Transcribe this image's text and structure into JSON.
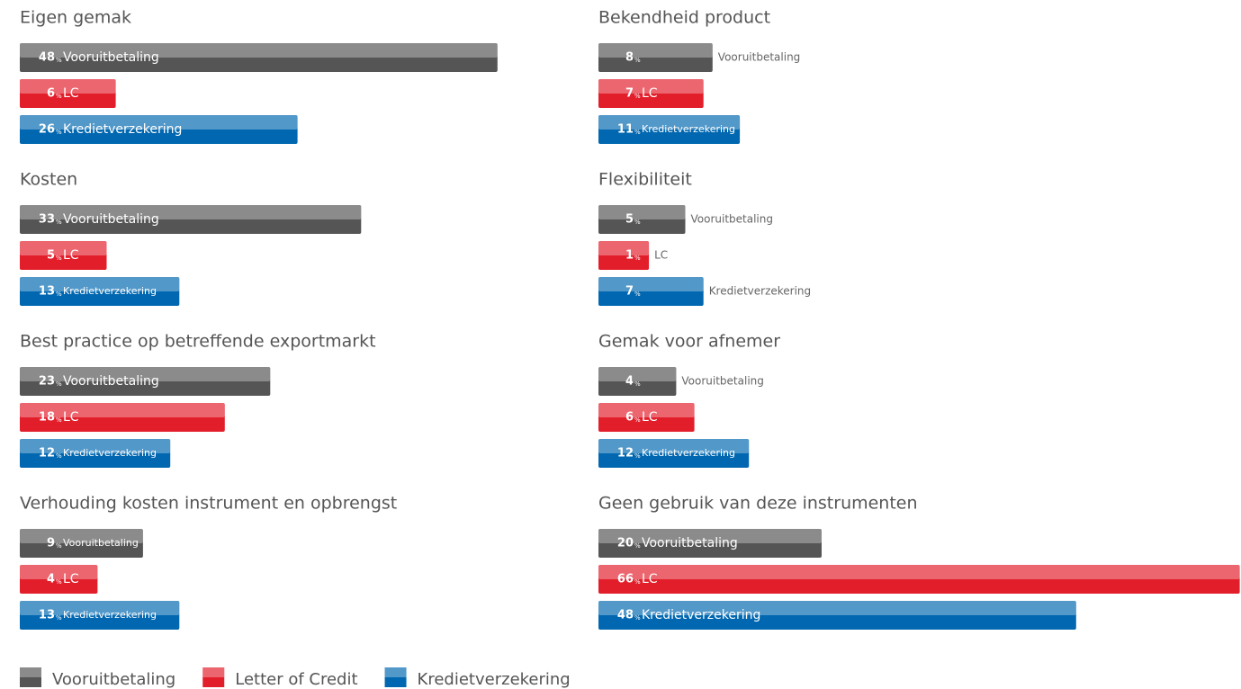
{
  "unit": "%",
  "legend": [
    {
      "name": "Vooruitbetaling",
      "color": "#555555"
    },
    {
      "name": "Letter of Credit",
      "color": "#e31e2b"
    },
    {
      "name": "Kredietverzekering",
      "color": "#0067b0"
    }
  ],
  "chart_data": [
    {
      "type": "bar",
      "title": "Eigen gemak",
      "categories": [
        "Vooruitbetaling",
        "LC",
        "Kredietverzekering"
      ],
      "values": [
        48,
        6,
        26
      ]
    },
    {
      "type": "bar",
      "title": "Kosten",
      "categories": [
        "Vooruitbetaling",
        "LC",
        "Kredietverzekering"
      ],
      "values": [
        33,
        5,
        13
      ]
    },
    {
      "type": "bar",
      "title": "Best practice op betreffende exportmarkt",
      "categories": [
        "Vooruitbetaling",
        "LC",
        "Kredietverzekering"
      ],
      "values": [
        23,
        18,
        12
      ]
    },
    {
      "type": "bar",
      "title": "Verhouding kosten instrument en opbrengst",
      "categories": [
        "Vooruitbetaling",
        "LC",
        "Kredietverzekering"
      ],
      "values": [
        9,
        4,
        13
      ]
    },
    {
      "type": "bar",
      "title": "Bekendheid product",
      "categories": [
        "Vooruitbetaling",
        "LC",
        "Kredietverzekering"
      ],
      "values": [
        8,
        7,
        11
      ]
    },
    {
      "type": "bar",
      "title": "Flexibiliteit",
      "categories": [
        "Vooruitbetaling",
        "LC",
        "Kredietverzekering"
      ],
      "values": [
        5,
        1,
        7
      ]
    },
    {
      "type": "bar",
      "title": "Gemak voor afnemer",
      "categories": [
        "Vooruitbetaling",
        "LC",
        "Kredietverzekering"
      ],
      "values": [
        4,
        6,
        12
      ]
    },
    {
      "type": "bar",
      "title": "Geen gebruik van deze instrumenten",
      "categories": [
        "Vooruitbetaling",
        "LC",
        "Kredietverzekering"
      ],
      "values": [
        20,
        66,
        48
      ]
    }
  ]
}
